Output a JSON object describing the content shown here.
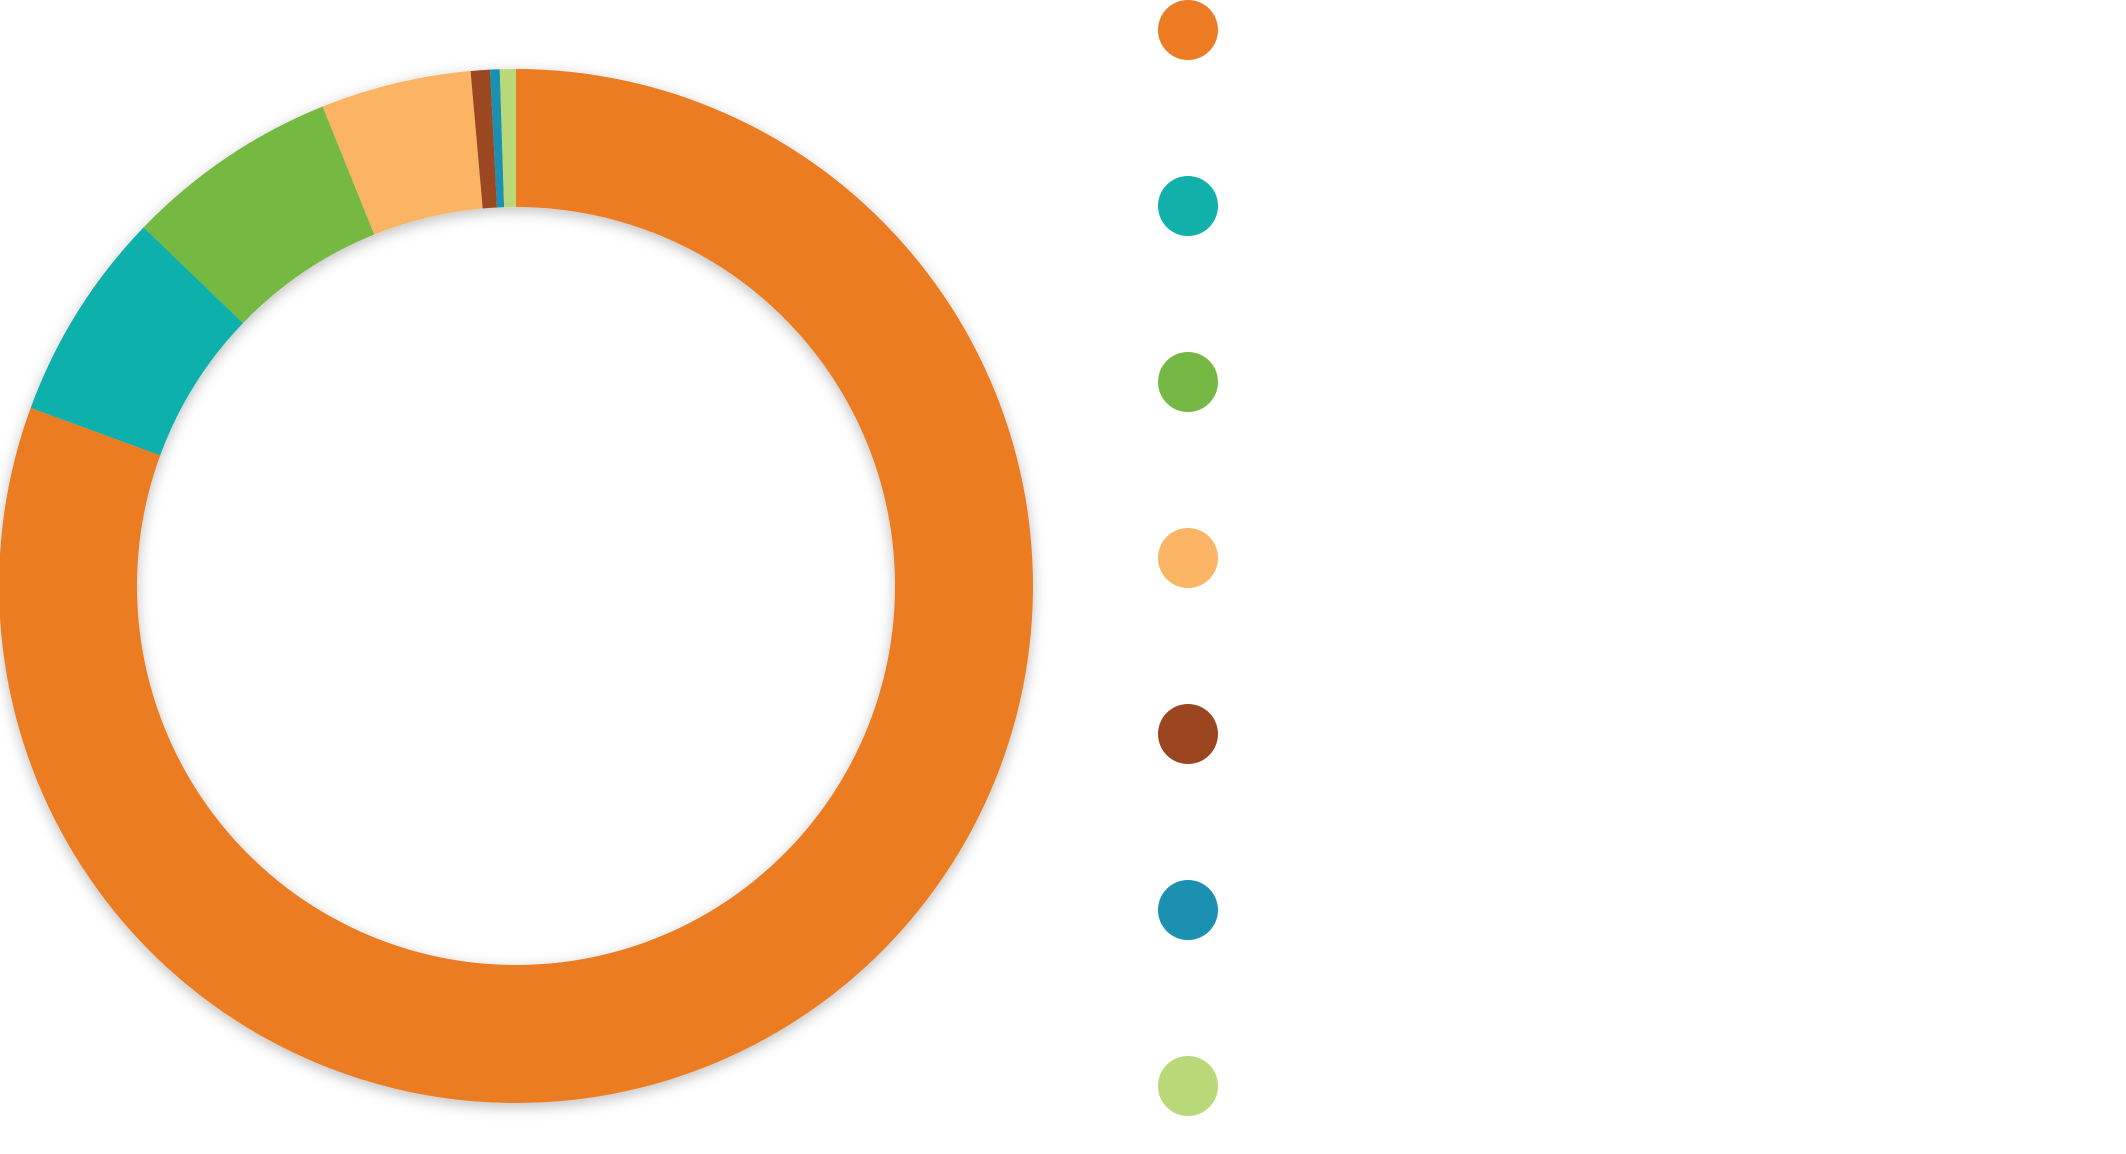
{
  "chart_data": {
    "type": "donut",
    "categories": [
      null,
      null,
      null,
      null,
      null,
      null,
      null
    ],
    "values": [
      80.6,
      6.6,
      6.7,
      4.7,
      0.6,
      0.3,
      0.5
    ],
    "colors": [
      "#ec7b24",
      "#11b0ab",
      "#74b843",
      "#fab463",
      "#9b4620",
      "#1b90b0",
      "#b9d877"
    ],
    "legend": "right"
  }
}
